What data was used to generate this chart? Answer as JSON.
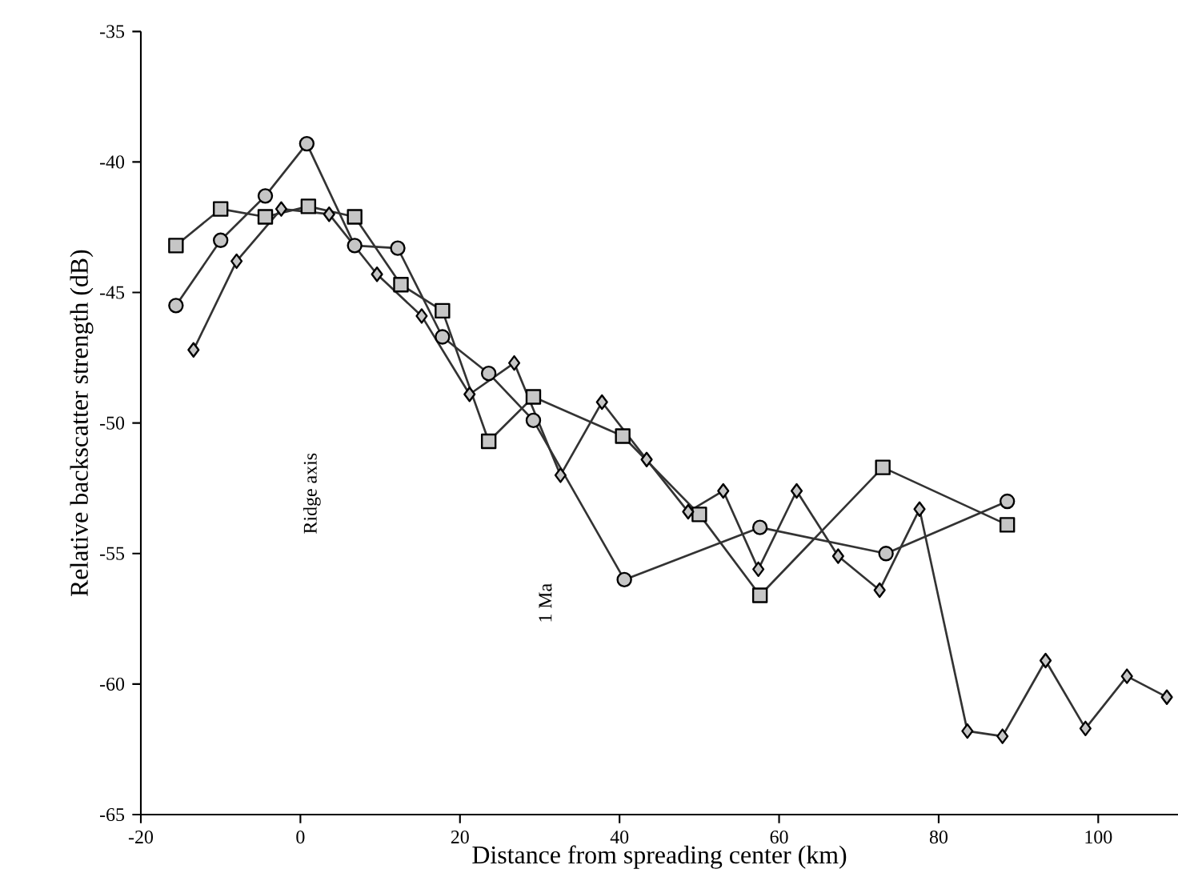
{
  "chart_data": {
    "type": "line",
    "xlabel": "Distance from spreading center (km)",
    "ylabel": "Relative backscatter strength (dB)",
    "xlim": [
      -20,
      110
    ],
    "ylim": [
      -65,
      -35
    ],
    "xticks": [
      -20,
      0,
      20,
      40,
      60,
      80,
      100
    ],
    "yticks": [
      -65,
      -60,
      -55,
      -50,
      -45,
      -40,
      -35
    ],
    "grid": false,
    "line_style": "solid",
    "series": [
      {
        "color": "#333333",
        "marker": "square",
        "x": [
          -15.6,
          -10,
          -4.4,
          1,
          6.8,
          12.6,
          17.8,
          23.6,
          29.2,
          40.4,
          50,
          57.6,
          73,
          88.6
        ],
        "values": [
          -43.2,
          -41.8,
          -42.1,
          -41.7,
          -42.1,
          -44.7,
          -45.7,
          -50.7,
          -49.0,
          -50.5,
          -53.5,
          -56.6,
          -51.7,
          -53.9
        ]
      },
      {
        "color": "#333333",
        "marker": "circle",
        "x": [
          -15.6,
          -10,
          -4.4,
          0.8,
          6.8,
          12.2,
          17.8,
          23.6,
          29.2,
          40.6,
          57.6,
          73.4,
          88.6
        ],
        "values": [
          -45.5,
          -43.0,
          -41.3,
          -39.3,
          -43.2,
          -43.3,
          -46.7,
          -48.1,
          -49.9,
          -56.0,
          -54.0,
          -55.0,
          -53.0
        ]
      },
      {
        "color": "#333333",
        "marker": "diamond",
        "x": [
          -13.4,
          -8,
          -2.4,
          3.6,
          9.6,
          15.2,
          21.2,
          26.8,
          32.6,
          37.8,
          43.4,
          48.6,
          53,
          57.4,
          62.2,
          67.4,
          72.6,
          77.6,
          83.6,
          88,
          93.4,
          98.4,
          103.6,
          108.6
        ],
        "values": [
          -47.2,
          -43.8,
          -41.8,
          -42.0,
          -44.3,
          -45.9,
          -48.9,
          -47.7,
          -52.0,
          -49.2,
          -51.4,
          -53.4,
          -52.6,
          -55.6,
          -52.6,
          -55.1,
          -56.4,
          -53.3,
          -61.8,
          -62.0,
          -59.1,
          -61.7,
          -59.7,
          -60.5
        ]
      }
    ],
    "annotations": [
      "Ridge axis",
      "1 Ma"
    ]
  }
}
